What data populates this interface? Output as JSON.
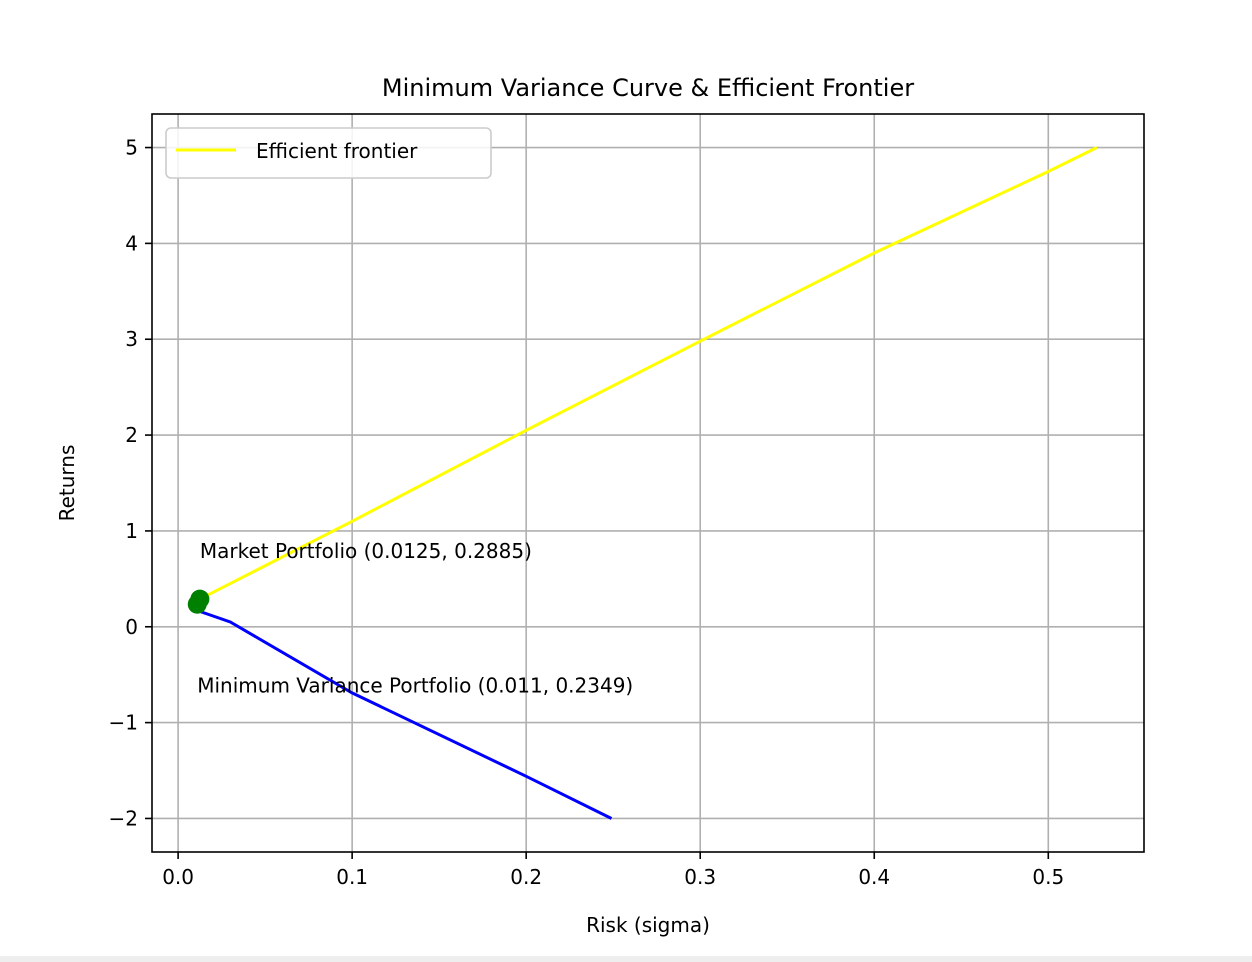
{
  "chart_data": {
    "type": "line",
    "title": "Minimum Variance Curve & Efficient Frontier",
    "xlabel": "Risk (sigma)",
    "ylabel": "Returns",
    "xlim": [
      -0.015,
      0.555
    ],
    "ylim": [
      -2.35,
      5.35
    ],
    "xticks": [
      0.0,
      0.1,
      0.2,
      0.3,
      0.4,
      0.5
    ],
    "xtick_labels": [
      "0.0",
      "0.1",
      "0.2",
      "0.3",
      "0.4",
      "0.5"
    ],
    "yticks": [
      -2,
      -1,
      0,
      1,
      2,
      3,
      4,
      5
    ],
    "ytick_labels": [
      "−2",
      "−1",
      "0",
      "1",
      "2",
      "3",
      "4",
      "5"
    ],
    "grid": true,
    "legend_position": "upper-left",
    "series": [
      {
        "name": "Efficient frontier",
        "color": "#ffff00",
        "in_legend": true,
        "x": [
          0.0125,
          0.1,
          0.2,
          0.3,
          0.4,
          0.5,
          0.528
        ],
        "y": [
          0.2885,
          1.1,
          2.05,
          2.98,
          3.9,
          4.75,
          5.0
        ]
      },
      {
        "name": "",
        "color": "#0000ff",
        "in_legend": false,
        "x": [
          0.011,
          0.03,
          0.1,
          0.2,
          0.249
        ],
        "y": [
          0.17,
          0.05,
          -0.69,
          -1.56,
          -2.0
        ]
      }
    ],
    "points": [
      {
        "x": 0.0125,
        "y": 0.2885,
        "color": "#008000"
      },
      {
        "x": 0.011,
        "y": 0.2349,
        "color": "#008000"
      }
    ],
    "annotations": [
      {
        "text": "Market Portfolio (0.0125, 0.2885)",
        "x": 0.0125,
        "y": 0.8
      },
      {
        "text": "Minimum Variance Portfolio (0.011, 0.2349)",
        "x": 0.011,
        "y": -0.6
      }
    ]
  }
}
